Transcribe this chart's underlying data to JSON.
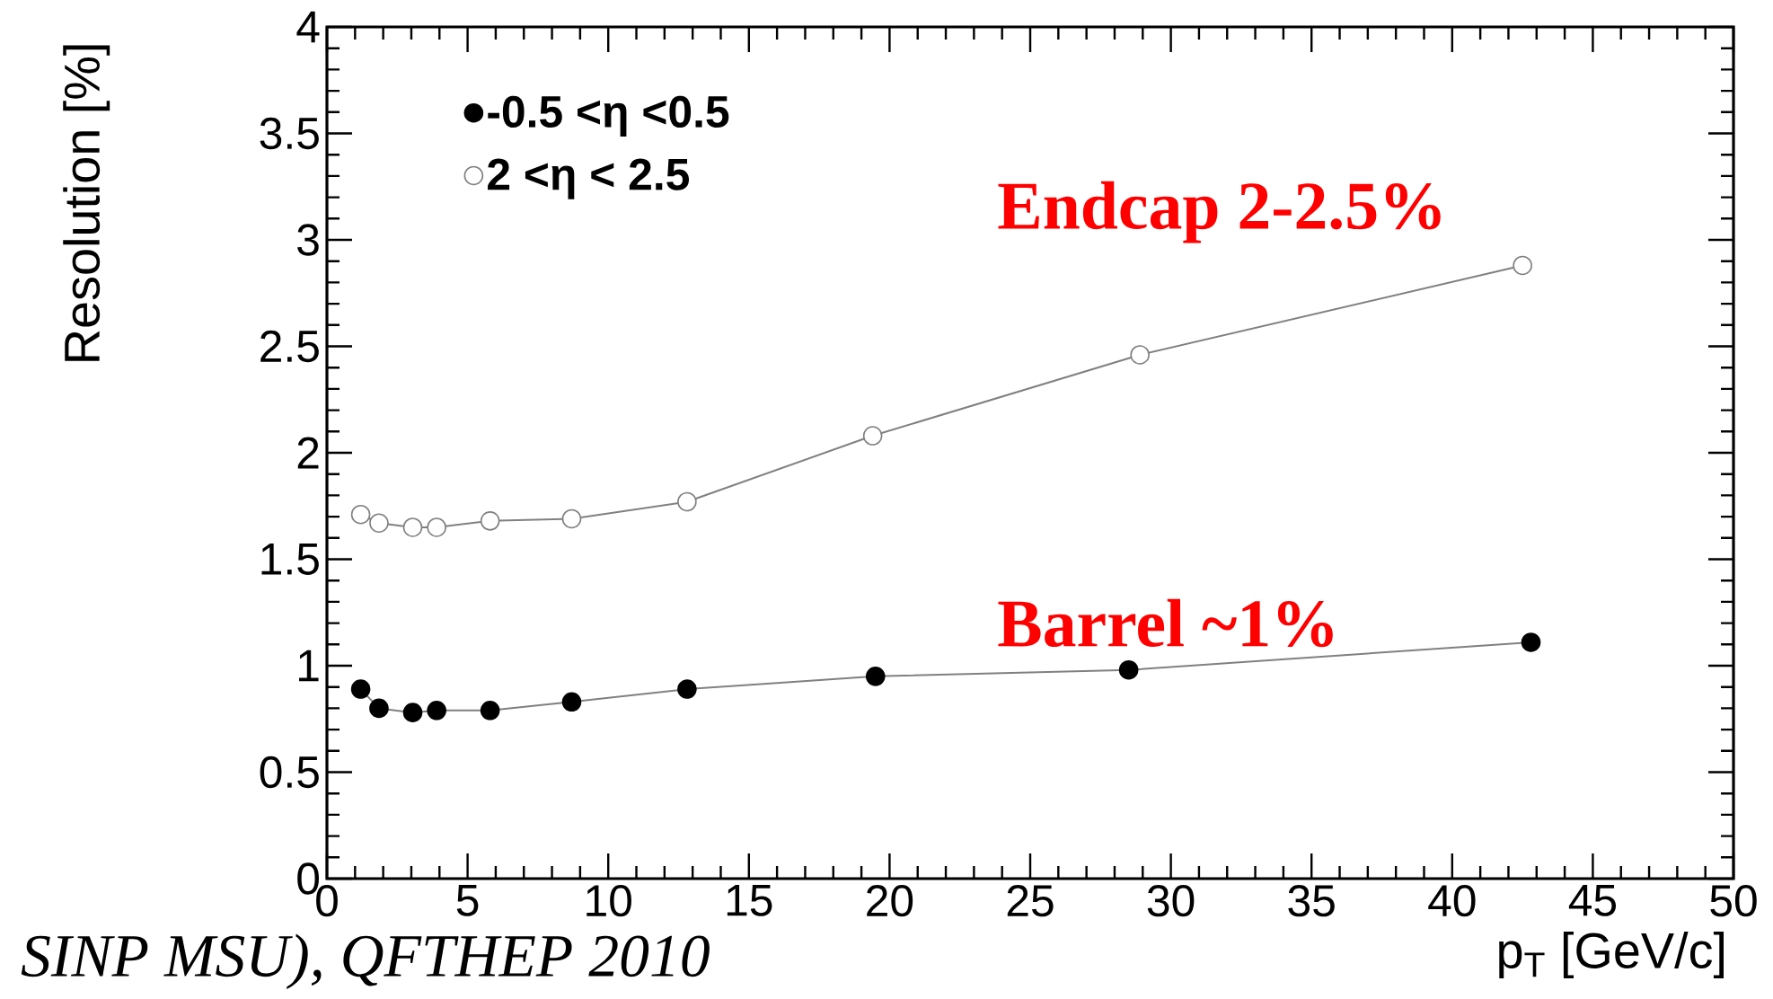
{
  "chart_data": {
    "type": "line",
    "xlabel": "p$_{T}$ [GeV/c]",
    "ylabel": "Resolution [%]",
    "xlim": [
      0,
      50
    ],
    "xticks": [
      0,
      5,
      10,
      15,
      20,
      25,
      30,
      35,
      40,
      45,
      50
    ],
    "ylim": [
      0,
      4
    ],
    "yticks": [
      0,
      0.5,
      1,
      1.5,
      2,
      2.5,
      3,
      3.5,
      4
    ],
    "series": [
      {
        "name": "-0.5 <η <0.5",
        "color": "#000000",
        "x": [
          1.2,
          1.85,
          3.05,
          3.9,
          5.8,
          8.7,
          12.8,
          19.5,
          28.5,
          42.8
        ],
        "values": [
          0.89,
          0.8,
          0.78,
          0.79,
          0.79,
          0.83,
          0.89,
          0.95,
          0.98,
          1.11
        ]
      },
      {
        "name": "2   <η < 2.5",
        "color": "#808080",
        "x": [
          1.2,
          1.85,
          3.05,
          3.9,
          5.8,
          8.7,
          12.8,
          19.4,
          28.9,
          42.5
        ],
        "values": [
          1.71,
          1.67,
          1.65,
          1.65,
          1.68,
          1.69,
          1.77,
          2.08,
          2.46,
          2.88
        ]
      }
    ],
    "marker": "circle",
    "legend": "top left",
    "grid": false,
    "annotations": [
      "Endcap 2-2.5%",
      "Barrel ~1%",
      "SINP MSU), QFTHEP 2010"
    ]
  }
}
